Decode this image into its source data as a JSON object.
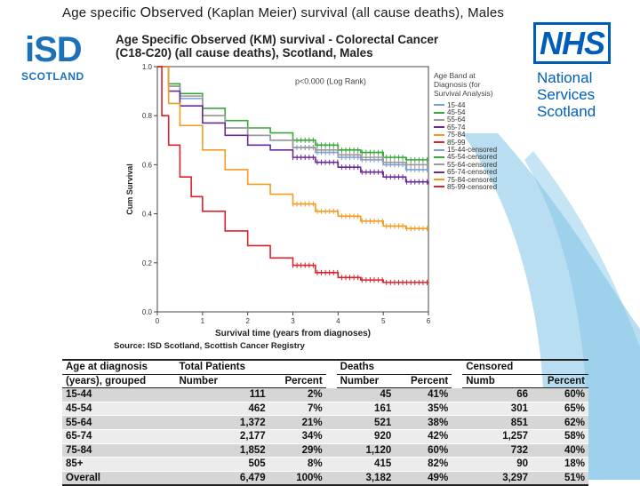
{
  "slide_title_part1": "Age specific",
  "slide_title_part2": "Observed",
  "slide_title_part3": "(Kaplan Meier) survival (all cause deaths), Males",
  "isd_logo": {
    "letters": "iSD",
    "sub": "SCOTLAND"
  },
  "nhs_logo": {
    "letters": "NHS",
    "line1": "National",
    "line2": "Services",
    "line3": "Scotland"
  },
  "chart_title_line1": "Age Specific Observed (KM) survival - Colorectal Cancer",
  "chart_title_line2": "(C18-C20) (all cause deaths), Scotland, Males",
  "source": "Source: ISD Scotland, Scottish Cancer Registry",
  "colors": {
    "accent": "#7fc3e6",
    "nhs_blue": "#005eb8",
    "isd_blue": "#1d71b8"
  },
  "chart_data": {
    "type": "line",
    "title": "Age Specific Observed (KM) survival - Colorectal Cancer (C18-C20) (all cause deaths), Scotland, Males",
    "xlabel": "Survival time (years from diagnoses)",
    "ylabel": "Cum Survival",
    "xlim": [
      0,
      6
    ],
    "ylim": [
      0,
      1.0
    ],
    "xticks": [
      "0",
      "1",
      "2",
      "3",
      "4",
      "5",
      "6"
    ],
    "yticks": [
      "0.0",
      "0.2",
      "0.4",
      "0.6",
      "0.8",
      "1.0"
    ],
    "annotation": "p<0.000 (Log Rank)",
    "legend_title": "Age Band at Diagnosis (for Survival Analysis)",
    "legend_position": "top-right",
    "series": [
      {
        "name": "15-44",
        "color": "#7b9fd4",
        "x": [
          0,
          0.25,
          0.5,
          1,
          1.5,
          2,
          2.5,
          3,
          3.5,
          4,
          4.5,
          5,
          5.5,
          6
        ],
        "values": [
          1.0,
          0.92,
          0.87,
          0.8,
          0.75,
          0.72,
          0.7,
          0.67,
          0.65,
          0.63,
          0.62,
          0.6,
          0.58,
          0.58
        ]
      },
      {
        "name": "45-54",
        "color": "#3aa63a",
        "x": [
          0,
          0.25,
          0.5,
          1,
          1.5,
          2,
          2.5,
          3,
          3.5,
          4,
          4.5,
          5,
          5.5,
          6
        ],
        "values": [
          1.0,
          0.93,
          0.89,
          0.83,
          0.78,
          0.75,
          0.73,
          0.7,
          0.68,
          0.66,
          0.65,
          0.63,
          0.62,
          0.62
        ]
      },
      {
        "name": "55-64",
        "color": "#9a9a9a",
        "x": [
          0,
          0.25,
          0.5,
          1,
          1.5,
          2,
          2.5,
          3,
          3.5,
          4,
          4.5,
          5,
          5.5,
          6
        ],
        "values": [
          1.0,
          0.92,
          0.88,
          0.8,
          0.75,
          0.72,
          0.7,
          0.67,
          0.66,
          0.64,
          0.63,
          0.61,
          0.6,
          0.6
        ]
      },
      {
        "name": "65-74",
        "color": "#6a2a96",
        "x": [
          0,
          0.25,
          0.5,
          1,
          1.5,
          2,
          2.5,
          3,
          3.5,
          4,
          4.5,
          5,
          5.5,
          6
        ],
        "values": [
          1.0,
          0.9,
          0.84,
          0.77,
          0.72,
          0.68,
          0.66,
          0.63,
          0.61,
          0.59,
          0.57,
          0.55,
          0.53,
          0.52
        ]
      },
      {
        "name": "75-84",
        "color": "#f39b1e",
        "x": [
          0,
          0.25,
          0.5,
          1,
          1.5,
          2,
          2.5,
          3,
          3.5,
          4,
          4.5,
          5,
          5.5,
          6
        ],
        "values": [
          1.0,
          0.85,
          0.76,
          0.66,
          0.58,
          0.52,
          0.48,
          0.44,
          0.41,
          0.39,
          0.37,
          0.35,
          0.34,
          0.34
        ]
      },
      {
        "name": "85-99",
        "color": "#d9232b",
        "x": [
          0,
          0.1,
          0.25,
          0.5,
          0.75,
          1,
          1.5,
          2,
          2.5,
          3,
          3.5,
          4,
          4.5,
          5,
          5.5,
          6
        ],
        "values": [
          1.0,
          0.8,
          0.68,
          0.55,
          0.47,
          0.41,
          0.33,
          0.27,
          0.22,
          0.19,
          0.16,
          0.14,
          0.13,
          0.12,
          0.12,
          0.12
        ]
      }
    ],
    "legend_entries": [
      {
        "name": "15-44",
        "color": "#7b9fd4"
      },
      {
        "name": "45-54",
        "color": "#3aa63a"
      },
      {
        "name": "55-64",
        "color": "#9a9a9a"
      },
      {
        "name": "65-74",
        "color": "#6a2a96"
      },
      {
        "name": "75-84",
        "color": "#f39b1e"
      },
      {
        "name": "85-99",
        "color": "#d9232b"
      },
      {
        "name": "15-44-censored",
        "color": "#7b9fd4"
      },
      {
        "name": "45-54-censored",
        "color": "#3aa63a"
      },
      {
        "name": "55-64-censored",
        "color": "#9a9a9a"
      },
      {
        "name": "65-74-censored",
        "color": "#6a2a96"
      },
      {
        "name": "75-84-censored",
        "color": "#f39b1e"
      },
      {
        "name": "85-99-censored",
        "color": "#d9232b"
      }
    ]
  },
  "table": {
    "header1": [
      "Age at diagnosis",
      "Total Patients",
      "",
      "Deaths",
      "",
      "Censored",
      ""
    ],
    "header2": [
      "(years), grouped",
      "Number",
      "Percent",
      "Number",
      "Percent",
      "Numb",
      "Percent"
    ],
    "rows": [
      [
        "15-44",
        "111",
        "2%",
        "45",
        "41%",
        "66",
        "60%"
      ],
      [
        "45-54",
        "462",
        "7%",
        "161",
        "35%",
        "301",
        "65%"
      ],
      [
        "55-64",
        "1,372",
        "21%",
        "521",
        "38%",
        "851",
        "62%"
      ],
      [
        "65-74",
        "2,177",
        "34%",
        "920",
        "42%",
        "1,257",
        "58%"
      ],
      [
        "75-84",
        "1,852",
        "29%",
        "1,120",
        "60%",
        "732",
        "40%"
      ],
      [
        "85+",
        "505",
        "8%",
        "415",
        "82%",
        "90",
        "18%"
      ],
      [
        "Overall",
        "6,479",
        "100%",
        "3,182",
        "49%",
        "3,297",
        "51%"
      ]
    ]
  }
}
